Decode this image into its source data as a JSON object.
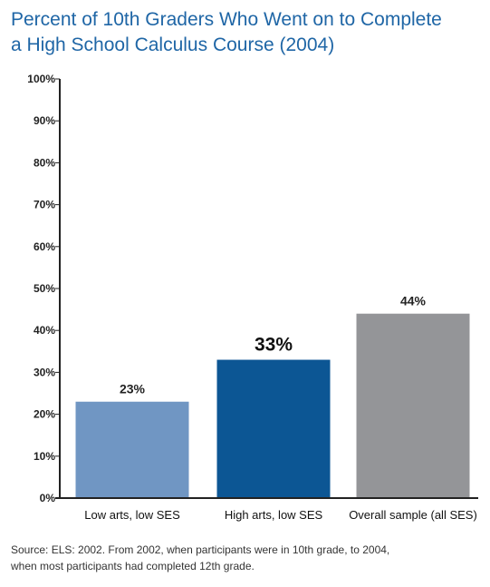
{
  "chart_data": {
    "type": "bar",
    "title_lines": [
      "Percent of 10th Graders Who Went on to Complete",
      "a High School Calculus Course (2004)"
    ],
    "categories": [
      "Low arts, low SES",
      "High arts, low SES",
      "Overall sample (all SES)"
    ],
    "values": [
      23,
      33,
      44
    ],
    "value_labels": [
      "23%",
      "33%",
      "44%"
    ],
    "colors": [
      "#7096c3",
      "#0c5694",
      "#949598"
    ],
    "highlight_index": 1,
    "ylim": [
      0,
      100
    ],
    "yticks": [
      "0%",
      "10%",
      "20%",
      "30%",
      "40%",
      "50%",
      "60%",
      "70%",
      "80%",
      "90%",
      "100%"
    ],
    "xlabel": "",
    "ylabel": "",
    "grid": false,
    "legend": "none"
  },
  "source_lines": [
    "Source: ELS: 2002. From 2002, when participants were in 10th grade, to 2004,",
    "when most participants had completed 12th grade."
  ]
}
